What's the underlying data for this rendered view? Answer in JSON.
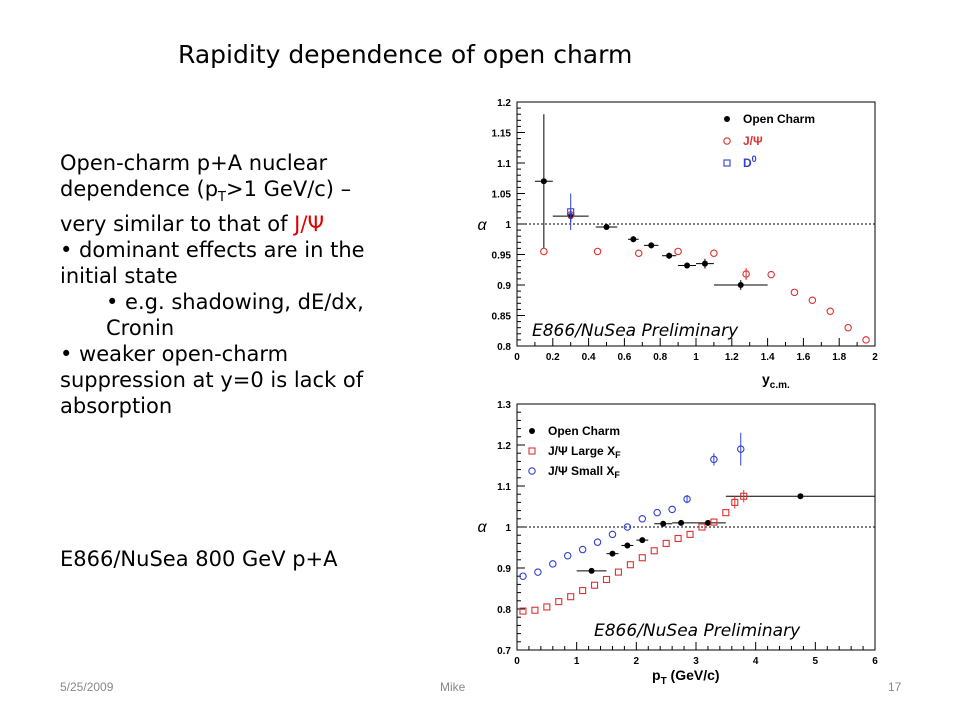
{
  "slide": {
    "title": "Rapidity dependence of open charm",
    "text": {
      "line1": "Open-charm p+A nuclear",
      "line2_pre": "dependence (p",
      "line2_sub": "T",
      "line2_post": ">1 GeV/c) –",
      "line3_pre": "very similar to that of ",
      "line3_jpsi": "J/Ψ",
      "bullet1": "• dominant effects are in the initial state",
      "bullet1a": "• e.g. shadowing, dE/dx, Cronin",
      "bullet2": "• weaker open-charm suppression at y=0 is lack of absorption"
    },
    "bottom_text": "E866/NuSea 800 GeV p+A",
    "footer": {
      "date": "5/25/2009",
      "name": "Mike",
      "page": "17"
    }
  },
  "colors": {
    "open_charm": "#000000",
    "jpsi": "#e03030",
    "d0": "#3040d0",
    "jpsi_small": "#3040d0"
  },
  "chart_data": [
    {
      "type": "scatter",
      "xlabel": "y",
      "xlabel_sub": "c.m.",
      "ylabel": "α",
      "xlim": [
        0,
        2
      ],
      "ylim": [
        0.8,
        1.2
      ],
      "xticks": [
        "0",
        "0.2",
        "0.4",
        "0.6",
        "0.8",
        "1",
        "1.2",
        "1.4",
        "1.6",
        "1.8",
        "2"
      ],
      "yticks": [
        "0.8",
        "0.85",
        "0.9",
        "0.95",
        "1",
        "1.05",
        "1.1",
        "1.15",
        "1.2"
      ],
      "reference_line": 1,
      "annotation": "E866/NuSea Preliminary",
      "legend_position": "top-right",
      "series": [
        {
          "name": "Open Charm",
          "marker": "filled-circle",
          "points": [
            {
              "x": 0.15,
              "y": 1.07,
              "xerr": 0.05,
              "yerr": 0.11
            },
            {
              "x": 0.3,
              "y": 1.013,
              "xerr": 0.1,
              "yerr": 0.01
            },
            {
              "x": 0.5,
              "y": 0.995,
              "xerr": 0.06,
              "yerr": 0.0
            },
            {
              "x": 0.65,
              "y": 0.975,
              "xerr": 0.03,
              "yerr": 0.005
            },
            {
              "x": 0.75,
              "y": 0.965,
              "xerr": 0.04,
              "yerr": 0.005
            },
            {
              "x": 0.85,
              "y": 0.948,
              "xerr": 0.04,
              "yerr": 0.005
            },
            {
              "x": 0.95,
              "y": 0.932,
              "xerr": 0.05,
              "yerr": 0.005
            },
            {
              "x": 1.05,
              "y": 0.935,
              "xerr": 0.05,
              "yerr": 0.008
            },
            {
              "x": 1.25,
              "y": 0.9,
              "xerr": 0.15,
              "yerr": 0.008
            }
          ]
        },
        {
          "name": "J/Ψ",
          "marker": "open-circle",
          "points": [
            {
              "x": 0.15,
              "y": 0.955
            },
            {
              "x": 0.3,
              "y": 1.015
            },
            {
              "x": 0.45,
              "y": 0.955
            },
            {
              "x": 0.68,
              "y": 0.952
            },
            {
              "x": 0.9,
              "y": 0.955
            },
            {
              "x": 1.1,
              "y": 0.952
            },
            {
              "x": 1.28,
              "y": 0.918,
              "yerr": 0.01
            },
            {
              "x": 1.42,
              "y": 0.917
            },
            {
              "x": 1.55,
              "y": 0.888
            },
            {
              "x": 1.65,
              "y": 0.875
            },
            {
              "x": 1.75,
              "y": 0.857
            },
            {
              "x": 1.85,
              "y": 0.83
            },
            {
              "x": 1.95,
              "y": 0.81
            }
          ]
        },
        {
          "name": "D",
          "name_sup": "0",
          "marker": "open-square",
          "points": [
            {
              "x": 0.3,
              "y": 1.02,
              "yerr": 0.03
            }
          ]
        }
      ]
    },
    {
      "type": "scatter",
      "xlabel": "p",
      "xlabel_sub": "T",
      "xlabel_post": " (GeV/c)",
      "ylabel": "α",
      "xlim": [
        0,
        6
      ],
      "ylim": [
        0.7,
        1.3
      ],
      "xticks": [
        "0",
        "1",
        "2",
        "3",
        "4",
        "5",
        "6"
      ],
      "yticks": [
        "0.7",
        "0.8",
        "0.9",
        "1",
        "1.1",
        "1.2",
        "1.3"
      ],
      "reference_line": 1,
      "annotation": "E866/NuSea Preliminary",
      "legend_position": "top-left",
      "series": [
        {
          "name": "Open Charm",
          "marker": "filled-circle",
          "points": [
            {
              "x": 1.25,
              "y": 0.893,
              "xerr": 0.25
            },
            {
              "x": 1.6,
              "y": 0.935,
              "xerr": 0.1
            },
            {
              "x": 1.85,
              "y": 0.955,
              "xerr": 0.1
            },
            {
              "x": 2.1,
              "y": 0.968,
              "xerr": 0.1
            },
            {
              "x": 2.45,
              "y": 1.008,
              "xerr": 0.15
            },
            {
              "x": 2.75,
              "y": 1.01,
              "xerr": 0.15
            },
            {
              "x": 3.2,
              "y": 1.01,
              "xerr": 0.3
            },
            {
              "x": 4.75,
              "y": 1.075,
              "xerr": 1.25
            }
          ]
        },
        {
          "name": "J/Ψ Large X",
          "name_sub": "F",
          "marker": "open-square",
          "points": [
            {
              "x": 0.1,
              "y": 0.795
            },
            {
              "x": 0.3,
              "y": 0.797
            },
            {
              "x": 0.5,
              "y": 0.805
            },
            {
              "x": 0.7,
              "y": 0.818
            },
            {
              "x": 0.9,
              "y": 0.83
            },
            {
              "x": 1.1,
              "y": 0.845
            },
            {
              "x": 1.3,
              "y": 0.858
            },
            {
              "x": 1.5,
              "y": 0.872
            },
            {
              "x": 1.7,
              "y": 0.89
            },
            {
              "x": 1.9,
              "y": 0.908
            },
            {
              "x": 2.1,
              "y": 0.925
            },
            {
              "x": 2.3,
              "y": 0.942
            },
            {
              "x": 2.5,
              "y": 0.96
            },
            {
              "x": 2.7,
              "y": 0.972
            },
            {
              "x": 2.9,
              "y": 0.982
            },
            {
              "x": 3.1,
              "y": 1.0
            },
            {
              "x": 3.3,
              "y": 1.012
            },
            {
              "x": 3.5,
              "y": 1.035
            },
            {
              "x": 3.65,
              "y": 1.06,
              "yerr": 0.015
            },
            {
              "x": 3.8,
              "y": 1.075,
              "yerr": 0.015
            }
          ]
        },
        {
          "name": "J/Ψ Small X",
          "name_sub": "F",
          "marker": "open-circle",
          "points": [
            {
              "x": 0.1,
              "y": 0.88
            },
            {
              "x": 0.35,
              "y": 0.89
            },
            {
              "x": 0.6,
              "y": 0.91
            },
            {
              "x": 0.85,
              "y": 0.93
            },
            {
              "x": 1.1,
              "y": 0.945
            },
            {
              "x": 1.35,
              "y": 0.963
            },
            {
              "x": 1.6,
              "y": 0.982
            },
            {
              "x": 1.85,
              "y": 1.0
            },
            {
              "x": 2.1,
              "y": 1.02
            },
            {
              "x": 2.35,
              "y": 1.035
            },
            {
              "x": 2.6,
              "y": 1.043
            },
            {
              "x": 2.85,
              "y": 1.068,
              "yerr": 0.01
            },
            {
              "x": 3.3,
              "y": 1.165,
              "yerr": 0.015
            },
            {
              "x": 3.75,
              "y": 1.19,
              "yerr": 0.04
            }
          ]
        }
      ]
    }
  ]
}
